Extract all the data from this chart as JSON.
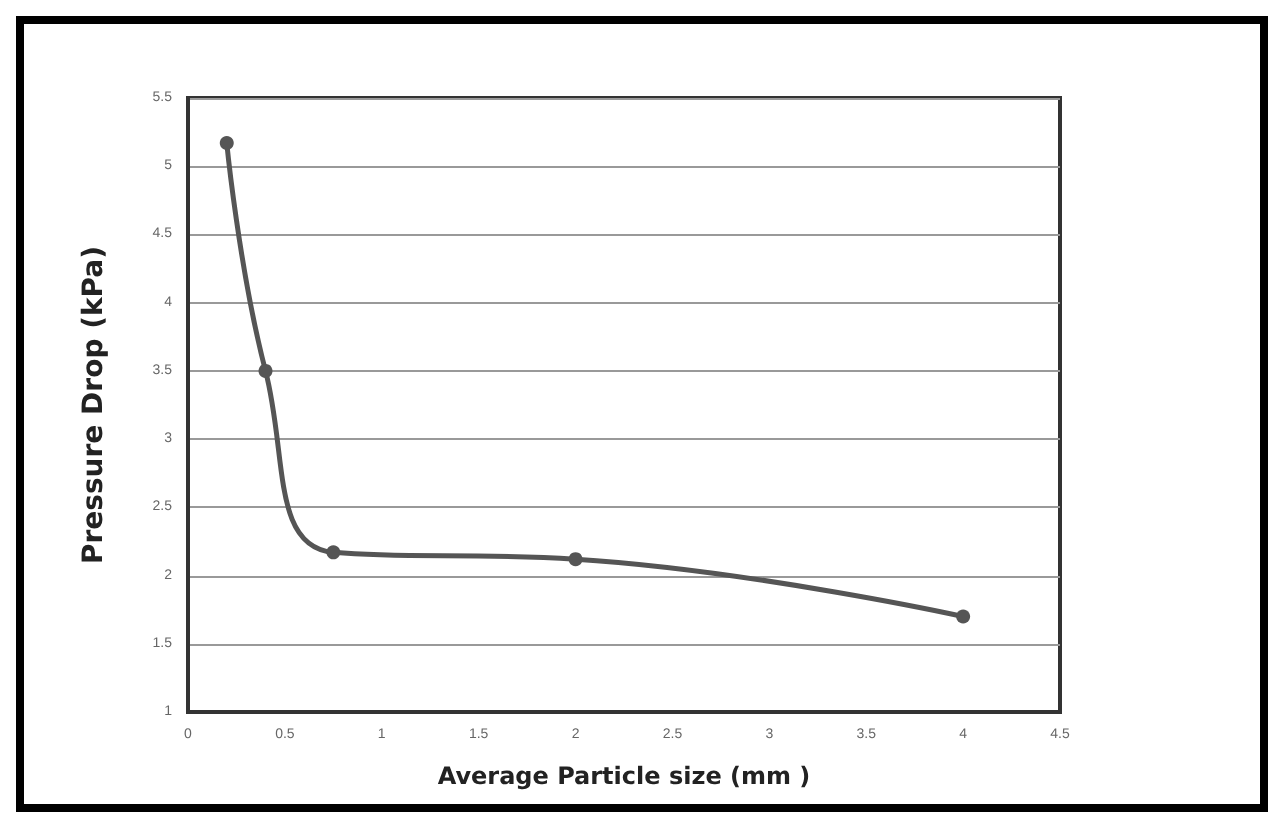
{
  "chart_data": {
    "type": "line",
    "xlabel": "Average Particle size (mm )",
    "ylabel": "Pressure Drop (kPa)",
    "x": [
      0.2,
      0.4,
      0.75,
      2,
      4
    ],
    "series": [
      {
        "color": "#555555",
        "values": [
          5.17,
          3.5,
          2.17,
          2.12,
          1.7
        ]
      }
    ],
    "xlim": [
      0,
      4.5
    ],
    "xticks": [
      0,
      0.5,
      1,
      1.5,
      2,
      2.5,
      3,
      3.5,
      4,
      4.5
    ],
    "ylim": [
      1,
      5.5
    ],
    "yticks": [
      1,
      1.5,
      2,
      2.5,
      3,
      3.5,
      4,
      4.5,
      5,
      5.5
    ],
    "grid": "y",
    "marker": "circle",
    "line_style": "solid"
  }
}
